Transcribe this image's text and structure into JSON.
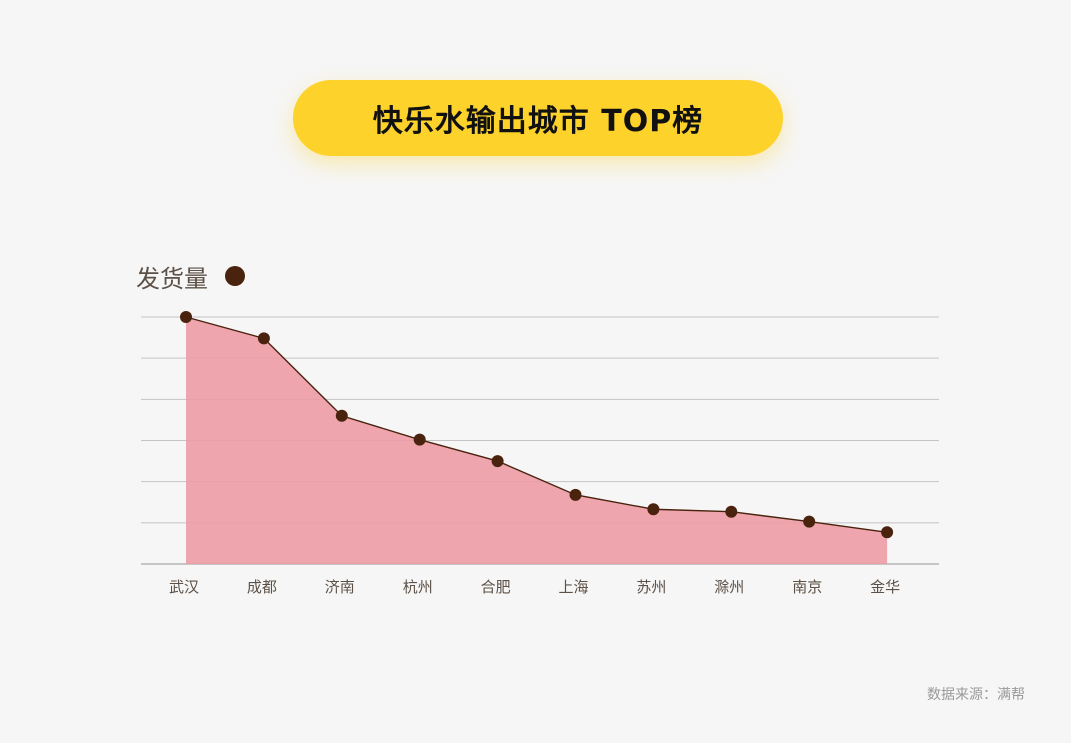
{
  "title": "快乐水输出城市 TOP榜",
  "source": "数据来源：满帮",
  "colors": {
    "title_bg": "#fdd22b",
    "area_fill": "#ee9aa3",
    "line": "#4a230e",
    "point": "#4a230e",
    "grid": "#c4c4c4"
  },
  "chart_data": {
    "type": "area",
    "categories": [
      "武汉",
      "成都",
      "济南",
      "杭州",
      "合肥",
      "上海",
      "苏州",
      "滁州",
      "南京",
      "金华"
    ],
    "series": [
      {
        "name": "发货量",
        "values": [
          6.0,
          5.48,
          3.6,
          3.02,
          2.5,
          1.68,
          1.33,
          1.27,
          1.03,
          0.77
        ]
      }
    ],
    "ylim": [
      0,
      6
    ],
    "y_ticks_labeled": false,
    "grid": true,
    "legend_position": "top-left"
  }
}
